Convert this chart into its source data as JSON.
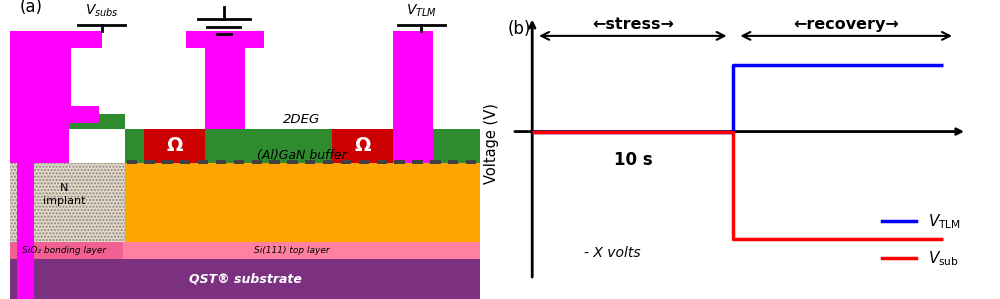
{
  "fig_width": 10.0,
  "fig_height": 2.99,
  "dpi": 100,
  "panel_b": {
    "label": "(b)",
    "stress_text": "←stress→",
    "recovery_text": "←recovery→",
    "ten_s": "10 s",
    "x_volts": "- X volts",
    "ylabel": "Voltage (V)",
    "blue_x": [
      0,
      5,
      5,
      10.2
    ],
    "blue_y": [
      0,
      0,
      2.8,
      2.8
    ],
    "red_x": [
      0,
      5,
      5,
      10.2
    ],
    "red_y": [
      0,
      0,
      -4.5,
      -4.5
    ],
    "blue_color": "#0000FF",
    "red_color": "#FF0000",
    "legend_blue": "V$_{\\mathrm{TLM}}$",
    "legend_red": "V$_{\\mathrm{sub}}$",
    "xlim": [
      -0.8,
      11.0
    ],
    "ylim": [
      -6.5,
      5.0
    ],
    "axis_x0": 0,
    "axis_y0": 0,
    "xmax": 10.8,
    "ymax": 4.8,
    "ymin": -6.2
  }
}
